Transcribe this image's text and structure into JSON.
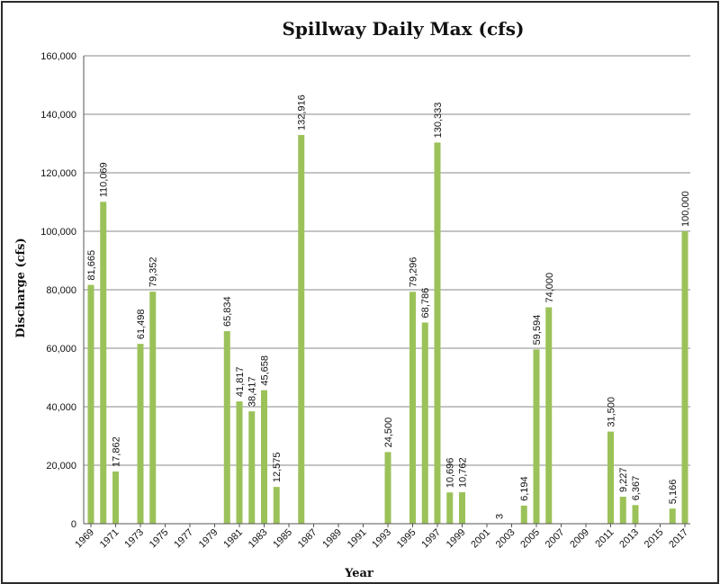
{
  "chart_data": {
    "type": "bar",
    "title": "Spillway Daily Max (cfs)",
    "xlabel": "Year",
    "ylabel": "Discharge (cfs)",
    "ylim": [
      0,
      160000
    ],
    "yticks": [
      "0",
      "20,000",
      "40,000",
      "60,000",
      "80,000",
      "100,000",
      "120,000",
      "140,000",
      "160,000"
    ],
    "xlim": [
      1969,
      2017
    ],
    "xticks": [
      "1969",
      "1971",
      "1973",
      "1975",
      "1977",
      "1979",
      "1981",
      "1983",
      "1985",
      "1987",
      "1989",
      "1991",
      "1993",
      "1995",
      "1997",
      "1999",
      "2001",
      "2003",
      "2005",
      "2007",
      "2009",
      "2011",
      "2013",
      "2015",
      "2017"
    ],
    "grid": true,
    "series": [
      {
        "values": [
          {
            "year": 1969,
            "value": 81665,
            "label": "81,665"
          },
          {
            "year": 1970,
            "value": 110069,
            "label": "110,069"
          },
          {
            "year": 1971,
            "value": 17862,
            "label": "17,862"
          },
          {
            "year": 1973,
            "value": 61498,
            "label": "61,498"
          },
          {
            "year": 1974,
            "value": 79352,
            "label": "79,352"
          },
          {
            "year": 1980,
            "value": 65834,
            "label": "65,834"
          },
          {
            "year": 1981,
            "value": 41817,
            "label": "41,817"
          },
          {
            "year": 1982,
            "value": 38417,
            "label": "38,417"
          },
          {
            "year": 1983,
            "value": 45658,
            "label": "45,658"
          },
          {
            "year": 1984,
            "value": 12575,
            "label": "12,575"
          },
          {
            "year": 1986,
            "value": 132916,
            "label": "132,916"
          },
          {
            "year": 1993,
            "value": 24500,
            "label": "24,500"
          },
          {
            "year": 1995,
            "value": 79296,
            "label": "79,296"
          },
          {
            "year": 1996,
            "value": 68786,
            "label": "68,786"
          },
          {
            "year": 1997,
            "value": 130333,
            "label": "130,333"
          },
          {
            "year": 1998,
            "value": 10696,
            "label": "10,696"
          },
          {
            "year": 1999,
            "value": 10762,
            "label": "10,762"
          },
          {
            "year": 2002,
            "value": 3,
            "label": "3"
          },
          {
            "year": 2004,
            "value": 6194,
            "label": "6,194"
          },
          {
            "year": 2005,
            "value": 59594,
            "label": "59,594"
          },
          {
            "year": 2006,
            "value": 74000,
            "label": "74,000"
          },
          {
            "year": 2011,
            "value": 31500,
            "label": "31,500"
          },
          {
            "year": 2012,
            "value": 9227,
            "label": "9,227"
          },
          {
            "year": 2013,
            "value": 6367,
            "label": "6,367"
          },
          {
            "year": 2016,
            "value": 5166,
            "label": "5,166"
          },
          {
            "year": 2017,
            "value": 100000,
            "label": "100,000"
          }
        ]
      }
    ],
    "bar_color": "#9bc259"
  }
}
